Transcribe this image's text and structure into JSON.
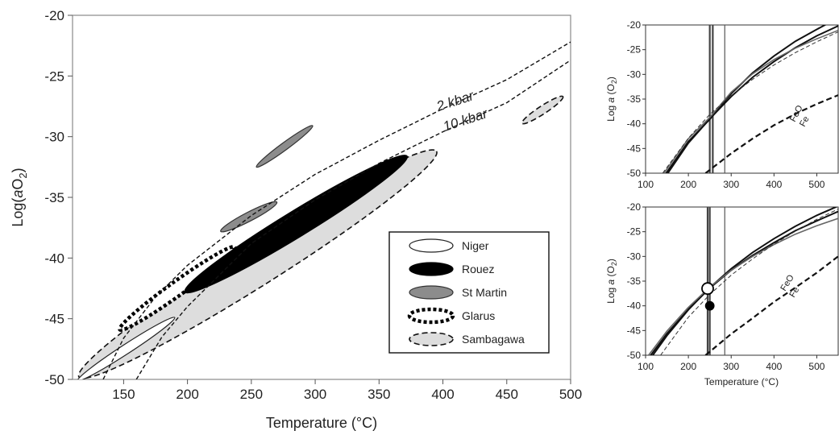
{
  "chart_data": [
    {
      "type": "scatter",
      "panel": "main",
      "xlabel": "Temperature (°C)",
      "ylabel_parts": [
        "Log(",
        "a",
        "O",
        "2",
        ")"
      ],
      "xlim": [
        110,
        500
      ],
      "ylim": [
        -50,
        -20
      ],
      "xticks": [
        150,
        200,
        250,
        300,
        350,
        400,
        450,
        500
      ],
      "yticks": [
        -20,
        -25,
        -30,
        -35,
        -40,
        -45,
        -50
      ],
      "grid": false,
      "legend_position": "bottom-right",
      "legend": [
        {
          "name": "Niger",
          "style": "white"
        },
        {
          "name": "Rouez",
          "style": "black"
        },
        {
          "name": "St Martin",
          "style": "gray"
        },
        {
          "name": "Glarus",
          "style": "dashed-black"
        },
        {
          "name": "Sambagawa",
          "style": "dashed-lightgray"
        }
      ],
      "curves": [
        {
          "name": "2 kbar",
          "points": [
            [
              134,
              -50
            ],
            [
              150,
              -46.6
            ],
            [
              175,
              -43.2
            ],
            [
              200,
              -40.6
            ],
            [
              250,
              -36.5
            ],
            [
              300,
              -33.1
            ],
            [
              350,
              -30.3
            ],
            [
              400,
              -27.7
            ],
            [
              450,
              -25.3
            ],
            [
              500,
              -22.2
            ]
          ]
        },
        {
          "name": "10 kbar",
          "points": [
            [
              160,
              -50
            ],
            [
              180,
              -46.5
            ],
            [
              200,
              -44
            ],
            [
              250,
              -38.8
            ],
            [
              300,
              -35.2
            ],
            [
              350,
              -32.2
            ],
            [
              400,
              -29.6
            ],
            [
              450,
              -27.2
            ],
            [
              500,
              -23.7
            ]
          ]
        }
      ],
      "regions": [
        {
          "name": "Sambagawa",
          "style": "dashed-lightgray",
          "center": [
            255,
            -40.5
          ],
          "half_length": [
            140,
            9.3
          ],
          "half_width_deg": 1.2
        },
        {
          "name": "Sambagawa",
          "style": "dashed-lightgray",
          "center": [
            478,
            -27.8
          ],
          "half_length": [
            16,
            1.1
          ],
          "half_width_deg": 0.9
        },
        {
          "name": "Niger",
          "style": "white",
          "center": [
            152,
            -47.5
          ],
          "half_length": [
            38,
            2.6
          ],
          "half_width_deg": 0.55
        },
        {
          "name": "Glarus",
          "style": "dashed-black",
          "center": [
            192,
            -42.5
          ],
          "half_length": [
            45,
            3.4
          ],
          "half_width_deg": 0.9
        },
        {
          "name": "Rouez",
          "style": "black",
          "center": [
            285,
            -37.2
          ],
          "half_length": [
            87,
            5.6
          ],
          "half_width_deg": 1.1
        },
        {
          "name": "St Martin",
          "style": "gray",
          "center": [
            276,
            -30.8
          ],
          "half_length": [
            22,
            1.7
          ],
          "half_width_deg": 0.5
        },
        {
          "name": "St Martin",
          "style": "gray",
          "center": [
            248,
            -36.6
          ],
          "half_length": [
            22,
            1.2
          ],
          "half_width_deg": 0.9
        }
      ]
    },
    {
      "type": "line",
      "panel": "top-right",
      "xlabel": "",
      "ylabel_parts": [
        "Log ",
        "a",
        " (O",
        "2",
        ")"
      ],
      "xlim": [
        100,
        550
      ],
      "ylim": [
        -50,
        -20
      ],
      "xticks": [
        100,
        200,
        300,
        400,
        500
      ],
      "yticks": [
        -20,
        -25,
        -30,
        -35,
        -40,
        -45,
        -50
      ],
      "vlines": [
        250,
        257,
        285
      ],
      "series": [
        {
          "style": "black",
          "points": [
            [
              148,
              -50
            ],
            [
              200,
              -43.6
            ],
            [
              250,
              -39.1
            ],
            [
              300,
              -33.9
            ],
            [
              350,
              -29.7
            ],
            [
              400,
              -26.3
            ],
            [
              450,
              -23.3
            ],
            [
              500,
              -20.9
            ],
            [
              530,
              -19.5
            ]
          ]
        },
        {
          "style": "black",
          "points": [
            [
              152,
              -50
            ],
            [
              200,
              -43.9
            ],
            [
              250,
              -39.0
            ],
            [
              300,
              -34.5
            ],
            [
              350,
              -30.6
            ],
            [
              400,
              -27.4
            ],
            [
              450,
              -24.6
            ],
            [
              500,
              -22.2
            ],
            [
              550,
              -20.2
            ]
          ]
        },
        {
          "style": "gray",
          "points": [
            [
              143,
              -50
            ],
            [
              200,
              -43.0
            ],
            [
              250,
              -38.7
            ],
            [
              300,
              -33.6
            ],
            [
              350,
              -29.9
            ],
            [
              400,
              -27.0
            ],
            [
              450,
              -24.7
            ],
            [
              500,
              -22.8
            ],
            [
              550,
              -21.1
            ]
          ]
        },
        {
          "style": "dashed",
          "points": [
            [
              140,
              -50
            ],
            [
              200,
              -42.9
            ],
            [
              250,
              -38.1
            ],
            [
              300,
              -34.3
            ],
            [
              350,
              -31.0
            ],
            [
              400,
              -28.1
            ],
            [
              450,
              -25.6
            ],
            [
              500,
              -23.4
            ],
            [
              550,
              -21.4
            ]
          ]
        },
        {
          "style": "dashed-thick",
          "points": [
            [
              240,
              -50
            ],
            [
              300,
              -46.0
            ],
            [
              350,
              -43.0
            ],
            [
              400,
              -40.3
            ],
            [
              450,
              -38.0
            ],
            [
              500,
              -36.0
            ],
            [
              550,
              -34.2
            ]
          ]
        }
      ],
      "annotations": [
        "FeO",
        "Fe"
      ]
    },
    {
      "type": "line",
      "panel": "bottom-right",
      "xlabel": "Temperature (°C)",
      "ylabel_parts": [
        "Log ",
        "a",
        " (O",
        "2",
        ")"
      ],
      "xlim": [
        100,
        550
      ],
      "ylim": [
        -50,
        -20
      ],
      "xticks": [
        100,
        200,
        300,
        400,
        500
      ],
      "yticks": [
        -20,
        -25,
        -30,
        -35,
        -40,
        -45,
        -50
      ],
      "vlines": [
        245,
        250,
        285
      ],
      "points": [
        {
          "style": "open",
          "x": 245,
          "y": -36.5
        },
        {
          "style": "filled",
          "x": 250,
          "y": -40.0
        }
      ],
      "series": [
        {
          "style": "black",
          "points": [
            [
              112,
              -50
            ],
            [
              150,
              -45.6
            ],
            [
              200,
              -40.7
            ],
            [
              250,
              -36.4
            ],
            [
              300,
              -32.8
            ],
            [
              350,
              -29.8
            ],
            [
              400,
              -27.2
            ],
            [
              450,
              -24.8
            ],
            [
              500,
              -22.8
            ],
            [
              550,
              -20.9
            ]
          ]
        },
        {
          "style": "black",
          "points": [
            [
              117,
              -50
            ],
            [
              150,
              -46.0
            ],
            [
              200,
              -40.8
            ],
            [
              250,
              -36.3
            ],
            [
              300,
              -32.5
            ],
            [
              350,
              -29.2
            ],
            [
              400,
              -26.4
            ],
            [
              450,
              -23.9
            ],
            [
              500,
              -21.7
            ],
            [
              550,
              -19.8
            ]
          ]
        },
        {
          "style": "gray",
          "points": [
            [
              107,
              -50
            ],
            [
              150,
              -45.1
            ],
            [
              200,
              -40.3
            ],
            [
              250,
              -36.2
            ],
            [
              300,
              -32.8
            ],
            [
              350,
              -30.0
            ],
            [
              400,
              -27.6
            ],
            [
              450,
              -25.5
            ],
            [
              500,
              -23.8
            ],
            [
              550,
              -22.3
            ]
          ]
        },
        {
          "style": "dashed",
          "points": [
            [
              135,
              -50
            ],
            [
              200,
              -42.3
            ],
            [
              250,
              -37.7
            ],
            [
              300,
              -33.8
            ],
            [
              350,
              -30.5
            ],
            [
              400,
              -27.5
            ],
            [
              450,
              -24.9
            ],
            [
              500,
              -22.5
            ],
            [
              550,
              -20.4
            ]
          ]
        },
        {
          "style": "dashed-thick",
          "points": [
            [
              240,
              -50
            ],
            [
              300,
              -45.7
            ],
            [
              350,
              -42.5
            ],
            [
              400,
              -39.2
            ],
            [
              450,
              -36.3
            ],
            [
              500,
              -33.3
            ],
            [
              550,
              -30.0
            ]
          ]
        }
      ],
      "annotations": [
        "FeO",
        "Fe"
      ]
    }
  ]
}
